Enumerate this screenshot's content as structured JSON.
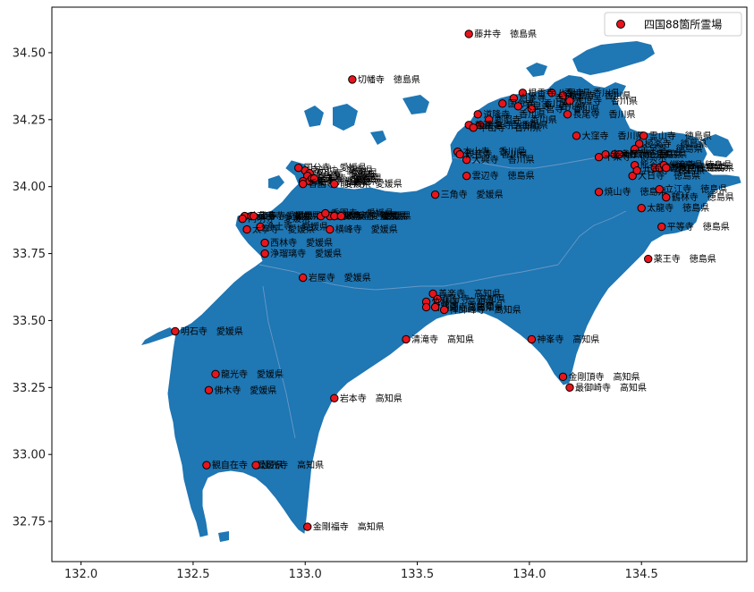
{
  "legend": {
    "label": "四国88箇所霊場"
  },
  "colors": {
    "land": "#1f77b4",
    "marker_fill": "#e8141c",
    "marker_edge": "#000000",
    "border": "#6f9cc6"
  },
  "chart_data": {
    "type": "scatter",
    "xlabel": "",
    "ylabel": "",
    "xlim": [
      131.87,
      134.97
    ],
    "ylim": [
      32.6,
      34.67
    ],
    "xticks": [
      {
        "v": 132.0,
        "label": "132.0"
      },
      {
        "v": 132.5,
        "label": "132.5"
      },
      {
        "v": 133.0,
        "label": "133.0"
      },
      {
        "v": 133.5,
        "label": "133.5"
      },
      {
        "v": 134.0,
        "label": "134.0"
      },
      {
        "v": 134.5,
        "label": "134.5"
      }
    ],
    "yticks": [
      {
        "v": 32.75,
        "label": "32.75"
      },
      {
        "v": 33.0,
        "label": "33.00"
      },
      {
        "v": 33.25,
        "label": "33.25"
      },
      {
        "v": 33.5,
        "label": "33.50"
      },
      {
        "v": 33.75,
        "label": "33.75"
      },
      {
        "v": 34.0,
        "label": "34.00"
      },
      {
        "v": 34.25,
        "label": "34.25"
      },
      {
        "v": 34.5,
        "label": "34.50"
      }
    ],
    "legend_position": "top-right",
    "series": [
      {
        "name": "四国88箇所霊場",
        "points": [
          {
            "x": 133.73,
            "y": 34.57,
            "label": "藤井寺　徳島県"
          },
          {
            "x": 133.21,
            "y": 34.4,
            "label": "切幡寺　徳島県"
          },
          {
            "x": 134.15,
            "y": 34.34,
            "label": "屋島寺　香川県"
          },
          {
            "x": 134.1,
            "y": 34.35,
            "label": "八栗寺　香川県"
          },
          {
            "x": 133.97,
            "y": 34.35,
            "label": "根香寺　香川県"
          },
          {
            "x": 133.93,
            "y": 34.33,
            "label": "白峯寺　香川県"
          },
          {
            "x": 133.88,
            "y": 34.31,
            "label": "国分寺　香川県"
          },
          {
            "x": 134.18,
            "y": 34.32,
            "label": "志度寺　香川県"
          },
          {
            "x": 134.01,
            "y": 34.29,
            "label": "一宮寺　香川県"
          },
          {
            "x": 133.95,
            "y": 34.3,
            "label": "天皇寺　香川県"
          },
          {
            "x": 134.17,
            "y": 34.27,
            "label": "長尾寺　香川県"
          },
          {
            "x": 133.77,
            "y": 34.27,
            "label": "道隆寺　香川県"
          },
          {
            "x": 133.82,
            "y": 34.25,
            "label": "郷照寺　香川県"
          },
          {
            "x": 133.78,
            "y": 34.23,
            "label": "金倉寺　香川県"
          },
          {
            "x": 133.73,
            "y": 34.23,
            "label": "善通寺　香川県"
          },
          {
            "x": 133.75,
            "y": 34.22,
            "label": "甲山寺　香川県"
          },
          {
            "x": 134.21,
            "y": 34.19,
            "label": "大窪寺　香川県"
          },
          {
            "x": 133.68,
            "y": 34.13,
            "label": "本山寺　香川県"
          },
          {
            "x": 133.72,
            "y": 34.1,
            "label": "大興寺　香川県"
          },
          {
            "x": 133.69,
            "y": 34.12,
            "label": "観音寺　香川県"
          },
          {
            "x": 133.72,
            "y": 34.04,
            "label": "雲辺寺　徳島県"
          },
          {
            "x": 133.58,
            "y": 33.97,
            "label": "三角寺　愛媛県"
          },
          {
            "x": 134.51,
            "y": 34.19,
            "label": "霊山寺　徳島県"
          },
          {
            "x": 134.49,
            "y": 34.16,
            "label": "極楽寺　徳島県"
          },
          {
            "x": 134.47,
            "y": 34.14,
            "label": "金泉寺　徳島県"
          },
          {
            "x": 134.38,
            "y": 34.12,
            "label": "大日寺　徳島県"
          },
          {
            "x": 134.4,
            "y": 34.12,
            "label": "地蔵寺　徳島県"
          },
          {
            "x": 134.34,
            "y": 34.12,
            "label": "安楽寺　徳島県"
          },
          {
            "x": 134.31,
            "y": 34.11,
            "label": "十楽寺　徳島県"
          },
          {
            "x": 134.47,
            "y": 34.08,
            "label": "熊谷寺　徳島県"
          },
          {
            "x": 134.56,
            "y": 34.07,
            "label": "観音寺　徳島県"
          },
          {
            "x": 134.58,
            "y": 34.07,
            "label": "国分寺　徳島県"
          },
          {
            "x": 134.6,
            "y": 34.08,
            "label": "常楽寺　徳島県"
          },
          {
            "x": 134.46,
            "y": 34.04,
            "label": "大日寺　徳島県"
          },
          {
            "x": 134.48,
            "y": 34.06,
            "label": "井戸寺　徳島県"
          },
          {
            "x": 134.61,
            "y": 34.07,
            "label": "恩山寺　徳島県"
          },
          {
            "x": 134.31,
            "y": 33.98,
            "label": "焼山寺　徳島県"
          },
          {
            "x": 134.58,
            "y": 33.99,
            "label": "立江寺　徳島県"
          },
          {
            "x": 134.61,
            "y": 33.96,
            "label": "鶴林寺　徳島県"
          },
          {
            "x": 134.5,
            "y": 33.92,
            "label": "太龍寺　徳島県"
          },
          {
            "x": 134.59,
            "y": 33.85,
            "label": "平等寺　徳島県"
          },
          {
            "x": 134.53,
            "y": 33.73,
            "label": "薬王寺　徳島県"
          },
          {
            "x": 132.97,
            "y": 34.07,
            "label": "国分寺　愛媛県"
          },
          {
            "x": 133.0,
            "y": 34.06,
            "label": "南光坊　愛媛県"
          },
          {
            "x": 133.02,
            "y": 34.05,
            "label": "泰山寺　愛媛県"
          },
          {
            "x": 133.01,
            "y": 34.04,
            "label": "延命寺　愛媛県"
          },
          {
            "x": 132.99,
            "y": 34.02,
            "label": "仙遊寺　愛媛県"
          },
          {
            "x": 133.02,
            "y": 34.02,
            "label": "栄福寺　愛媛県"
          },
          {
            "x": 133.03,
            "y": 34.03,
            "label": "宝寿寺　愛媛県"
          },
          {
            "x": 133.04,
            "y": 34.03,
            "label": "吉祥寺　愛媛県"
          },
          {
            "x": 132.99,
            "y": 34.01,
            "label": "香園寺　愛媛県"
          },
          {
            "x": 133.13,
            "y": 34.01,
            "label": "前神寺　愛媛県"
          },
          {
            "x": 132.73,
            "y": 33.89,
            "label": "太山寺　愛媛県"
          },
          {
            "x": 132.72,
            "y": 33.88,
            "label": "円明寺　愛媛県"
          },
          {
            "x": 132.76,
            "y": 33.89,
            "label": "石手寺　愛媛県"
          },
          {
            "x": 132.77,
            "y": 33.89,
            "label": "繁多寺　愛媛県"
          },
          {
            "x": 133.07,
            "y": 33.89,
            "label": "西山興隆寺　愛媛県"
          },
          {
            "x": 133.11,
            "y": 33.89,
            "label": "宝厳寺　愛媛県"
          },
          {
            "x": 133.09,
            "y": 33.9,
            "label": "香園寺　愛媛県"
          },
          {
            "x": 133.13,
            "y": 33.89,
            "label": "浄瑠璃寺　愛媛県"
          },
          {
            "x": 133.16,
            "y": 33.89,
            "label": "八坂寺　愛媛県"
          },
          {
            "x": 132.8,
            "y": 33.85,
            "label": "浄土寺　愛媛県"
          },
          {
            "x": 132.74,
            "y": 33.84,
            "label": "太寧寺　愛媛県"
          },
          {
            "x": 133.11,
            "y": 33.84,
            "label": "横峰寺　愛媛県"
          },
          {
            "x": 132.82,
            "y": 33.79,
            "label": "西林寺　愛媛県"
          },
          {
            "x": 132.82,
            "y": 33.75,
            "label": "浄瑠璃寺　愛媛県"
          },
          {
            "x": 132.99,
            "y": 33.66,
            "label": "岩屋寺　愛媛県"
          },
          {
            "x": 133.57,
            "y": 33.6,
            "label": "善楽寺　高知県"
          },
          {
            "x": 133.59,
            "y": 33.58,
            "label": "国分寺　高知県"
          },
          {
            "x": 133.54,
            "y": 33.57,
            "label": "竹林寺　高知県"
          },
          {
            "x": 133.54,
            "y": 33.55,
            "label": "雪蹊寺　高知県"
          },
          {
            "x": 133.58,
            "y": 33.55,
            "label": "種間寺　高知県"
          },
          {
            "x": 133.62,
            "y": 33.54,
            "label": "禅師峰寺　高知県"
          },
          {
            "x": 133.45,
            "y": 33.43,
            "label": "清滝寺　高知県"
          },
          {
            "x": 134.01,
            "y": 33.43,
            "label": "神峯寺　高知県"
          },
          {
            "x": 132.42,
            "y": 33.46,
            "label": "明石寺　愛媛県"
          },
          {
            "x": 132.6,
            "y": 33.3,
            "label": "龍光寺　愛媛県"
          },
          {
            "x": 132.57,
            "y": 33.24,
            "label": "佛木寺　愛媛県"
          },
          {
            "x": 133.13,
            "y": 33.21,
            "label": "岩本寺　高知県"
          },
          {
            "x": 134.15,
            "y": 33.29,
            "label": "金剛頂寺　高知県"
          },
          {
            "x": 134.18,
            "y": 33.25,
            "label": "最御崎寺　高知県"
          },
          {
            "x": 132.56,
            "y": 32.96,
            "label": "観自在寺　愛媛県"
          },
          {
            "x": 132.78,
            "y": 32.96,
            "label": "延光寺　高知県"
          },
          {
            "x": 133.01,
            "y": 32.73,
            "label": "金剛福寺　高知県"
          }
        ]
      }
    ]
  }
}
